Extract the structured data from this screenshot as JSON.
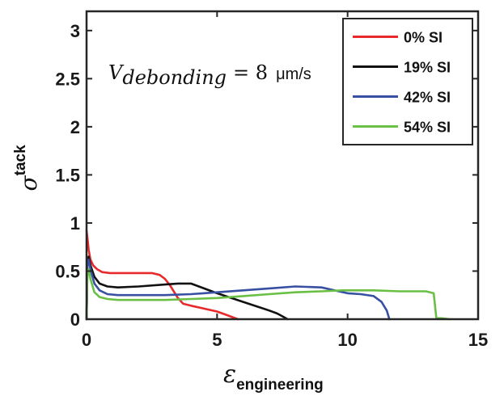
{
  "chart_data": {
    "type": "line",
    "title": "",
    "xlabel": {
      "symbol": "ε",
      "subscript": "engineering"
    },
    "ylabel": {
      "symbol": "σ",
      "superscript": "tack"
    },
    "xlim": [
      0,
      15
    ],
    "ylim": [
      0,
      3.2
    ],
    "x_ticks": [
      0,
      5,
      10,
      15
    ],
    "x_tick_labels": [
      "0",
      "5",
      "10",
      "15"
    ],
    "y_ticks": [
      0,
      0.5,
      1,
      1.5,
      2,
      2.5,
      3
    ],
    "y_tick_labels": [
      "0",
      "0.5",
      "1",
      "1.5",
      "2",
      "2.5",
      "3"
    ],
    "grid": false,
    "legend_position": "top-right",
    "annotation": {
      "symbol": "V",
      "subscript": "debonding",
      "equals": "= 8",
      "unit": "μm/s"
    },
    "series": [
      {
        "name": "0% SI",
        "color": "#e8292b",
        "x": [
          0,
          0.03,
          0.08,
          0.15,
          0.25,
          0.4,
          0.6,
          0.9,
          1.5,
          2.0,
          2.5,
          2.8,
          3.0,
          3.2,
          3.5,
          3.7,
          4.0,
          4.5,
          5.0,
          5.3,
          5.6,
          5.8
        ],
        "y": [
          0.92,
          0.85,
          0.72,
          0.62,
          0.56,
          0.52,
          0.49,
          0.48,
          0.48,
          0.48,
          0.48,
          0.46,
          0.42,
          0.35,
          0.22,
          0.16,
          0.14,
          0.11,
          0.08,
          0.05,
          0.02,
          0.0
        ]
      },
      {
        "name": "19% SI",
        "color": "#111111",
        "x": [
          0,
          0.03,
          0.08,
          0.15,
          0.3,
          0.5,
          0.8,
          1.2,
          2.0,
          3.0,
          3.5,
          4.0,
          4.5,
          5.0,
          6.0,
          7.0,
          7.3,
          7.5,
          7.7
        ],
        "y": [
          0.0,
          0.55,
          0.65,
          0.56,
          0.44,
          0.37,
          0.34,
          0.33,
          0.34,
          0.36,
          0.37,
          0.37,
          0.32,
          0.27,
          0.18,
          0.09,
          0.06,
          0.03,
          0.0
        ],
        "start_vertical": true
      },
      {
        "name": "42% SI",
        "color": "#3750a2",
        "x": [
          0,
          0.03,
          0.08,
          0.15,
          0.3,
          0.5,
          0.8,
          1.2,
          2.0,
          3.0,
          4.0,
          5.0,
          6.0,
          7.0,
          8.0,
          9.0,
          9.5,
          10.0,
          10.5,
          11.0,
          11.3,
          11.5,
          11.6
        ],
        "y": [
          0.0,
          0.55,
          0.62,
          0.52,
          0.37,
          0.3,
          0.26,
          0.25,
          0.25,
          0.25,
          0.26,
          0.28,
          0.3,
          0.32,
          0.34,
          0.33,
          0.3,
          0.27,
          0.26,
          0.24,
          0.18,
          0.09,
          0.0
        ],
        "start_vertical": true
      },
      {
        "name": "54% SI",
        "color": "#6abf45",
        "x": [
          0,
          0.03,
          0.08,
          0.15,
          0.3,
          0.5,
          0.8,
          1.2,
          2.0,
          3.0,
          4.0,
          5.0,
          6.0,
          7.0,
          8.0,
          9.0,
          9.8,
          10.5,
          11.0,
          12.0,
          13.0,
          13.3,
          13.4,
          13.6,
          13.9
        ],
        "y": [
          0.0,
          0.47,
          0.52,
          0.42,
          0.28,
          0.23,
          0.21,
          0.2,
          0.2,
          0.2,
          0.21,
          0.22,
          0.24,
          0.26,
          0.28,
          0.29,
          0.3,
          0.3,
          0.3,
          0.29,
          0.29,
          0.27,
          0.01,
          0.01,
          0.0
        ],
        "start_vertical": true
      }
    ]
  }
}
